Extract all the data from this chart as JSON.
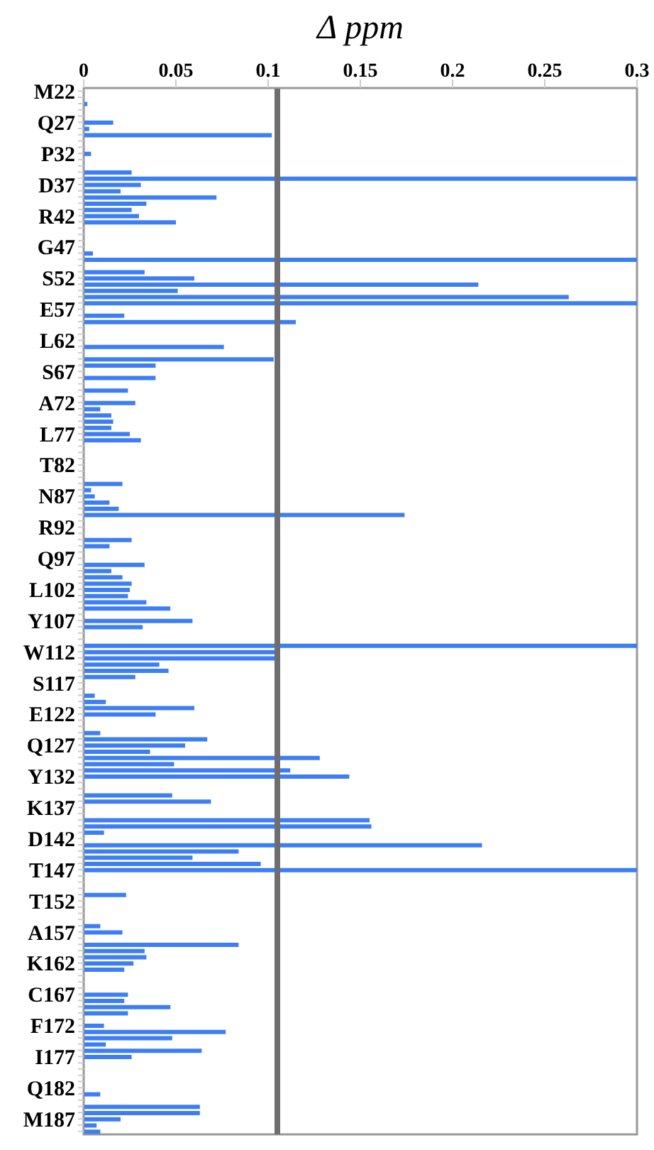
{
  "chart_data": {
    "type": "bar",
    "orientation": "horizontal",
    "xlabel": "Δ ppm",
    "categories": [
      "M22",
      null,
      null,
      null,
      null,
      "Q27",
      null,
      null,
      null,
      null,
      "P32",
      null,
      null,
      null,
      null,
      "D37",
      null,
      null,
      null,
      null,
      "R42",
      null,
      null,
      null,
      null,
      "G47",
      null,
      null,
      null,
      null,
      "S52",
      null,
      null,
      null,
      null,
      "E57",
      null,
      null,
      null,
      null,
      "L62",
      null,
      null,
      null,
      null,
      "S67",
      null,
      null,
      null,
      null,
      "A72",
      null,
      null,
      null,
      null,
      "L77",
      null,
      null,
      null,
      null,
      "T82",
      null,
      null,
      null,
      null,
      "N87",
      null,
      null,
      null,
      null,
      "R92",
      null,
      null,
      null,
      null,
      "Q97",
      null,
      null,
      null,
      null,
      "L102",
      null,
      null,
      null,
      null,
      "Y107",
      null,
      null,
      null,
      null,
      "W112",
      null,
      null,
      null,
      null,
      "S117",
      null,
      null,
      null,
      null,
      "E122",
      null,
      null,
      null,
      null,
      "Q127",
      null,
      null,
      null,
      null,
      "Y132",
      null,
      null,
      null,
      null,
      "K137",
      null,
      null,
      null,
      null,
      "D142",
      null,
      null,
      null,
      null,
      "T147",
      null,
      null,
      null,
      null,
      "T152",
      null,
      null,
      null,
      null,
      "A157",
      null,
      null,
      null,
      null,
      "K162",
      null,
      null,
      null,
      null,
      "C167",
      null,
      null,
      null,
      null,
      "F172",
      null,
      null,
      null,
      null,
      "I177",
      null,
      null,
      null,
      null,
      "Q182",
      null,
      null,
      null,
      null,
      "M187",
      null,
      null
    ],
    "values": [
      null,
      null,
      0.002,
      null,
      null,
      0.016,
      0.003,
      0.102,
      null,
      null,
      0.004,
      null,
      null,
      0.026,
      0.3,
      0.031,
      0.02,
      0.072,
      0.034,
      0.026,
      0.03,
      0.05,
      null,
      null,
      null,
      null,
      0.005,
      0.3,
      null,
      0.033,
      0.06,
      0.214,
      0.051,
      0.263,
      0.3,
      null,
      0.022,
      0.115,
      null,
      null,
      null,
      0.076,
      null,
      0.103,
      0.039,
      null,
      0.039,
      null,
      0.024,
      null,
      0.028,
      0.009,
      0.015,
      0.016,
      0.015,
      0.025,
      0.031,
      null,
      null,
      null,
      null,
      null,
      null,
      0.021,
      0.004,
      0.006,
      0.014,
      0.019,
      0.174,
      null,
      null,
      null,
      0.026,
      0.014,
      null,
      null,
      0.033,
      0.015,
      0.021,
      0.026,
      0.025,
      0.024,
      0.034,
      0.047,
      null,
      0.059,
      0.032,
      null,
      null,
      0.3,
      0.105,
      0.105,
      0.041,
      0.046,
      0.028,
      null,
      null,
      0.006,
      0.012,
      0.06,
      0.039,
      null,
      null,
      0.009,
      0.067,
      0.055,
      0.036,
      0.128,
      0.049,
      0.112,
      0.144,
      null,
      null,
      0.048,
      0.069,
      null,
      null,
      0.155,
      0.156,
      0.011,
      null,
      0.216,
      0.084,
      0.059,
      0.096,
      0.3,
      null,
      null,
      null,
      0.023,
      null,
      null,
      null,
      null,
      0.009,
      0.021,
      null,
      0.084,
      0.033,
      0.034,
      0.027,
      0.022,
      null,
      null,
      null,
      0.024,
      0.022,
      0.047,
      0.024,
      null,
      0.011,
      0.077,
      0.048,
      0.012,
      0.064,
      0.026,
      null,
      null,
      null,
      null,
      null,
      0.009,
      null,
      0.063,
      0.063,
      0.02,
      0.007,
      0.009
    ],
    "color": "#3d7ef5",
    "xlim": [
      0,
      0.3
    ],
    "xticks": [
      0,
      0.05,
      0.1,
      0.15,
      0.2,
      0.25,
      0.3
    ],
    "ref_lines": [
      {
        "axis": "x",
        "value": 0.105,
        "color": "#6e6e6e"
      }
    ]
  }
}
